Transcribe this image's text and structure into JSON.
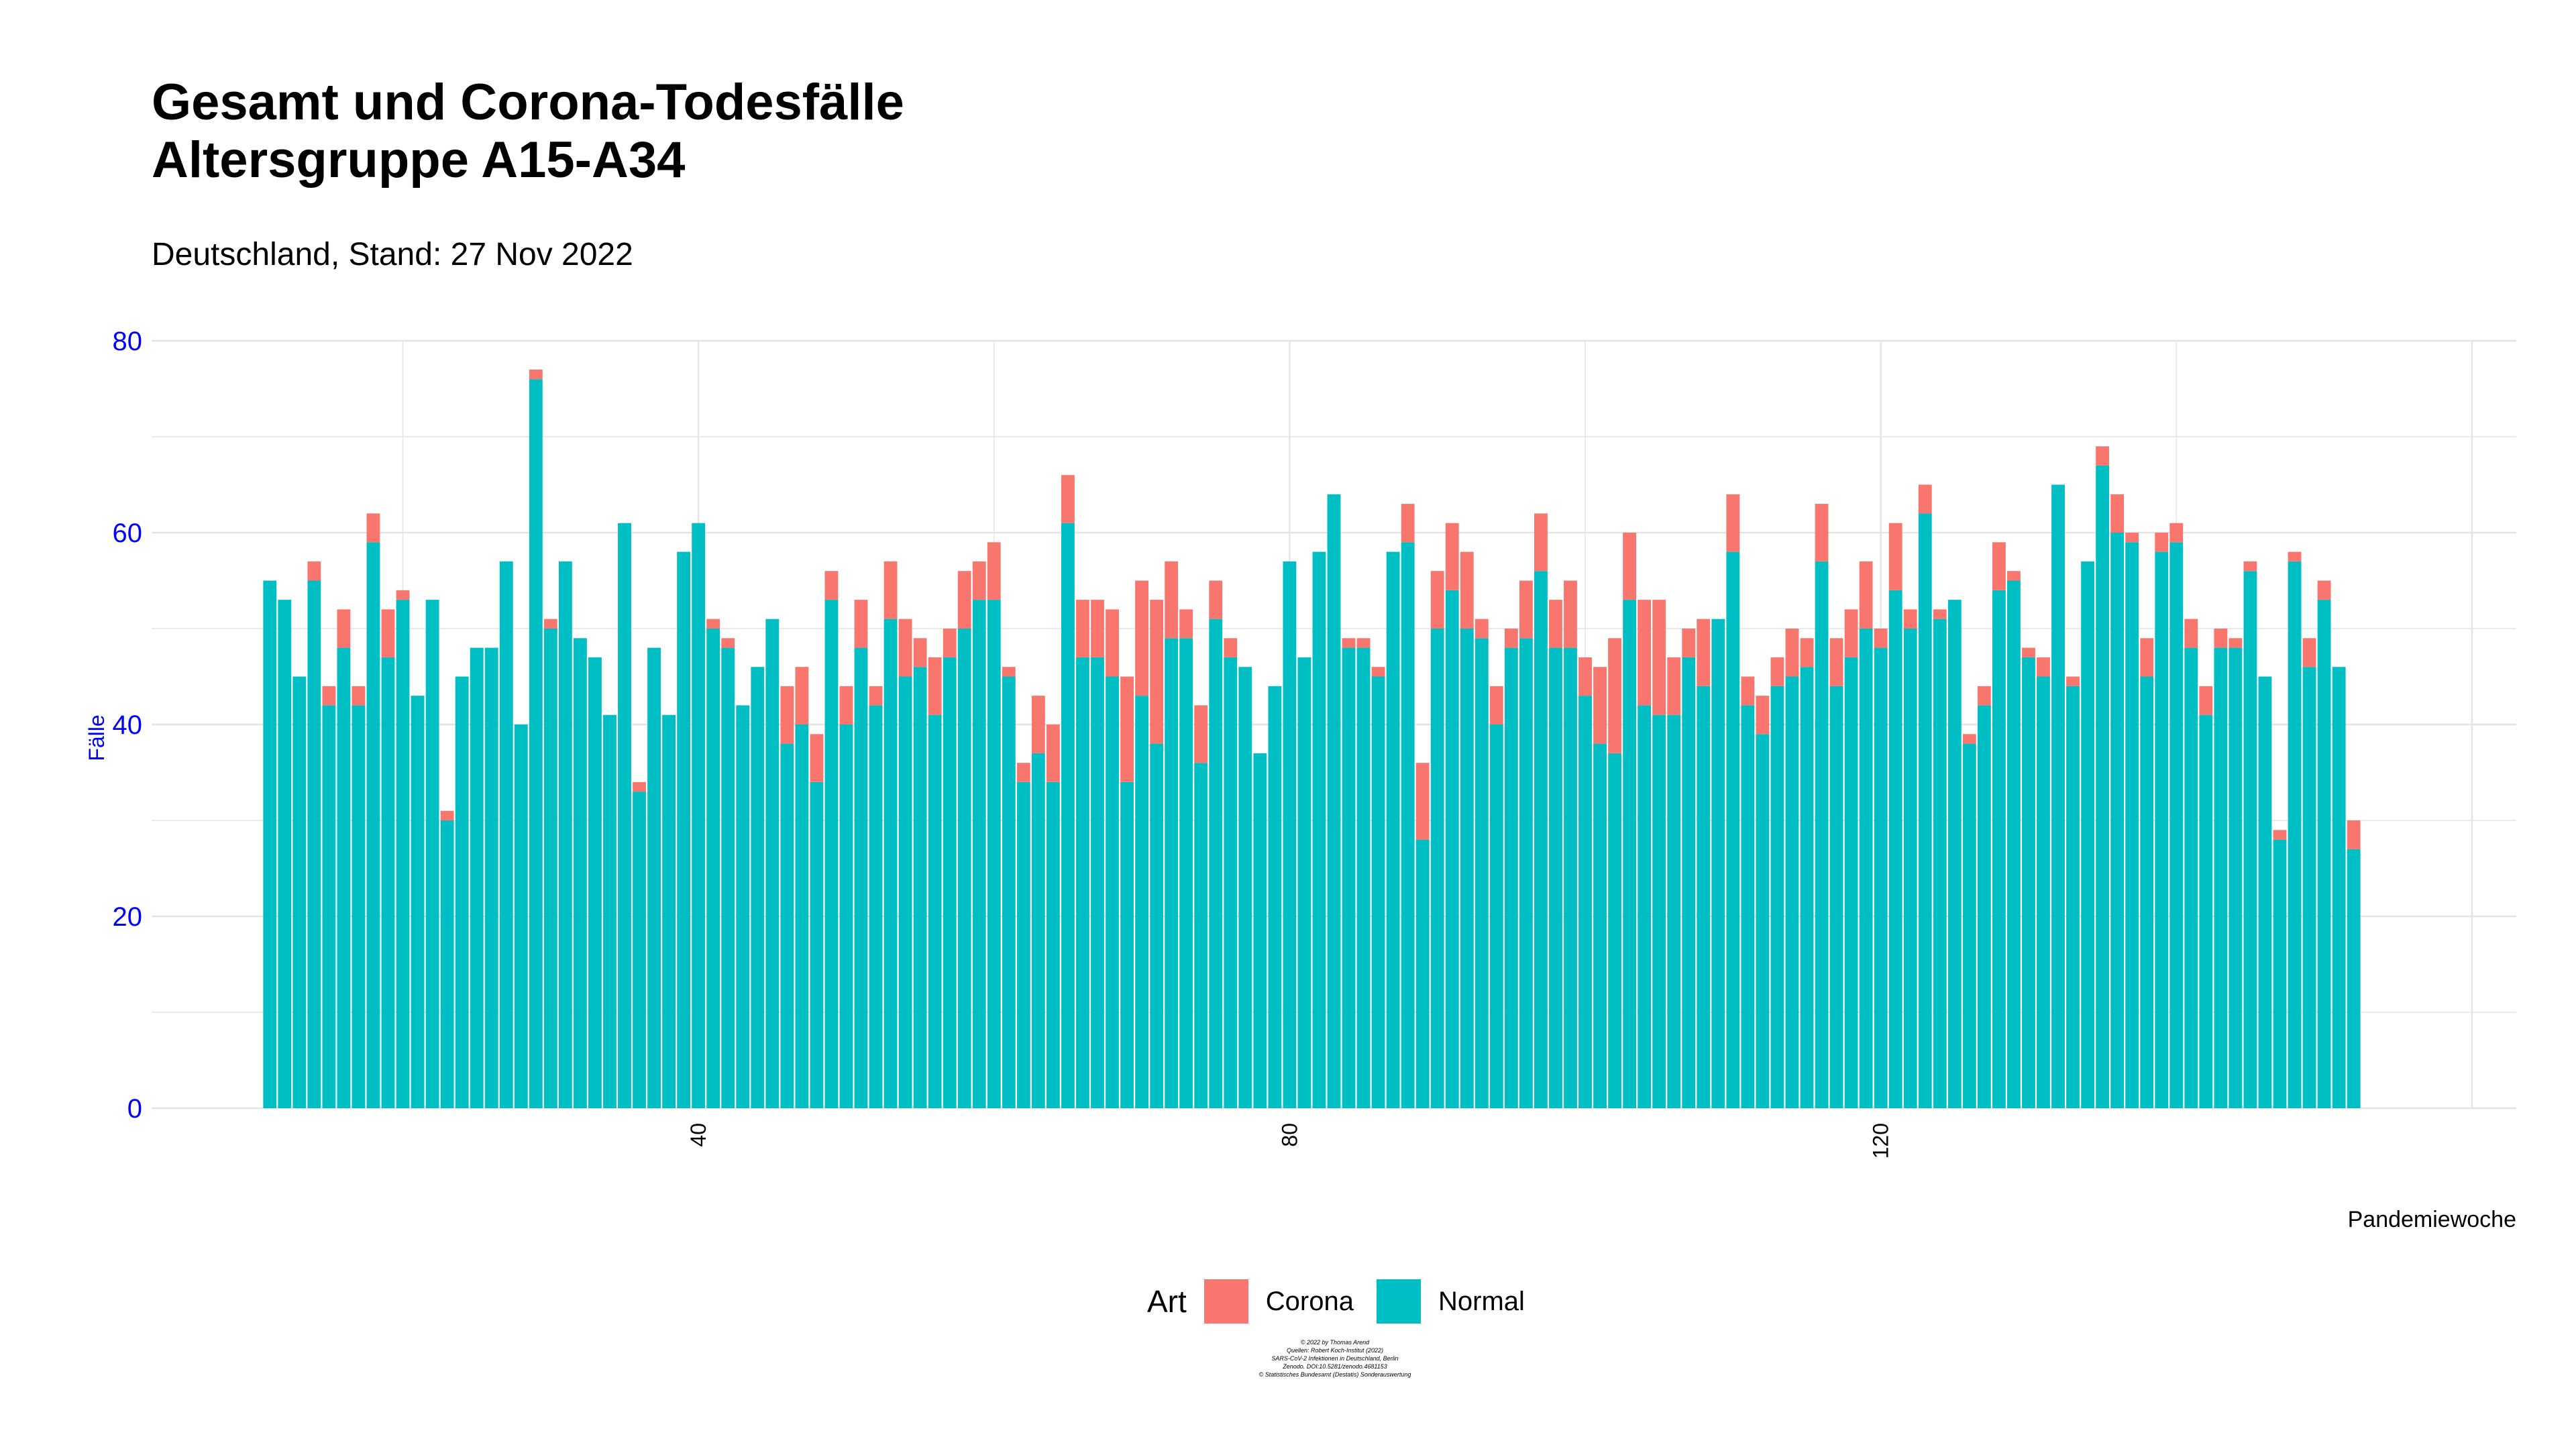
{
  "title_lines": [
    "Gesamt und Corona-Todesfälle",
    "Altersgruppe A15-A34"
  ],
  "subtitle": "Deutschland, Stand: 27 Nov 2022",
  "legend": {
    "title": "Art",
    "items": [
      {
        "label": "Corona",
        "color": "#F8766D"
      },
      {
        "label": "Normal",
        "color": "#00BFC4"
      }
    ]
  },
  "caption_lines": [
    "© 2022 by Thomas Arend",
    "Quellen: Robert Koch-Institut (2022)",
    "SARS-CoV-2 Infektionen in Deutschland, Berlin",
    "Zenodo. DOI:10.5281/zenodo.4681153",
    "© Statistisches Bundesamt (Destatis) Sonderauswertung"
  ],
  "chart_data": {
    "type": "bar",
    "stacked": true,
    "x_start": 11,
    "xlabel": "Pandemiewoche",
    "ylabel": "Fälle",
    "xlim": [
      3,
      163
    ],
    "ylim": [
      0,
      80
    ],
    "x_ticks": [
      40,
      80,
      120
    ],
    "y_ticks": [
      0,
      20,
      40,
      60,
      80
    ],
    "grid": true,
    "legend_position": "bottom",
    "series": [
      {
        "name": "Normal",
        "color": "#00BFC4",
        "values": [
          55,
          53,
          45,
          55,
          42,
          48,
          42,
          59,
          47,
          53,
          43,
          53,
          30,
          45,
          48,
          48,
          57,
          40,
          76,
          50,
          57,
          49,
          47,
          41,
          61,
          33,
          48,
          41,
          58,
          61,
          50,
          48,
          42,
          46,
          51,
          38,
          40,
          34,
          53,
          40,
          48,
          42,
          51,
          45,
          46,
          41,
          47,
          50,
          53,
          53,
          45,
          34,
          37,
          34,
          61,
          47,
          47,
          45,
          34,
          43,
          38,
          49,
          49,
          36,
          51,
          47,
          46,
          37,
          44,
          57,
          47,
          58,
          64,
          48,
          48,
          45,
          58,
          59,
          28,
          50,
          54,
          50,
          49,
          40,
          48,
          49,
          56,
          48,
          48,
          43,
          38,
          37,
          53,
          42,
          41,
          41,
          47,
          44,
          51,
          58,
          42,
          39,
          44,
          45,
          46,
          57,
          44,
          47,
          50,
          48,
          54,
          50,
          62,
          51,
          53,
          38,
          42,
          54,
          55,
          47,
          45,
          65,
          44,
          57,
          67,
          60,
          59,
          45,
          58,
          59,
          48,
          41,
          48,
          48,
          56,
          45,
          28,
          57,
          46,
          53,
          46,
          27
        ]
      },
      {
        "name": "Corona",
        "color": "#F8766D",
        "values": [
          0,
          0,
          0,
          2,
          2,
          4,
          2,
          3,
          5,
          1,
          0,
          0,
          1,
          0,
          0,
          0,
          0,
          0,
          1,
          1,
          0,
          0,
          0,
          0,
          0,
          1,
          0,
          0,
          0,
          0,
          1,
          1,
          0,
          0,
          0,
          6,
          6,
          5,
          3,
          4,
          5,
          2,
          6,
          6,
          3,
          6,
          3,
          6,
          4,
          6,
          1,
          2,
          6,
          6,
          5,
          6,
          6,
          7,
          11,
          12,
          15,
          8,
          3,
          6,
          4,
          2,
          0,
          0,
          0,
          0,
          0,
          0,
          0,
          1,
          1,
          1,
          0,
          4,
          8,
          6,
          7,
          8,
          2,
          4,
          2,
          6,
          6,
          5,
          7,
          4,
          8,
          12,
          7,
          11,
          12,
          6,
          3,
          7,
          0,
          6,
          3,
          4,
          3,
          5,
          3,
          6,
          5,
          5,
          7,
          2,
          7,
          2,
          3,
          1,
          0,
          1,
          2,
          5,
          1,
          1,
          2,
          0,
          1,
          0,
          2,
          4,
          1,
          4,
          2,
          2,
          3,
          3,
          2,
          1,
          1,
          0,
          1,
          1,
          3,
          2,
          0,
          3
        ]
      }
    ]
  }
}
